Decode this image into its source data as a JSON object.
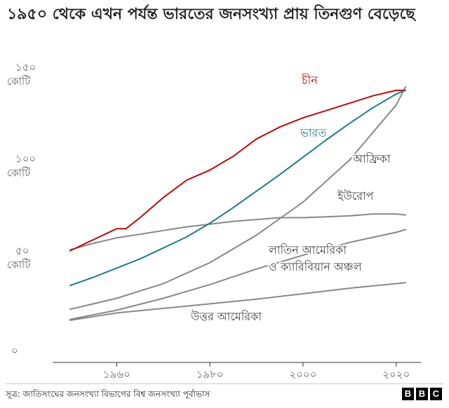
{
  "title": "১৯৫০ থেকে এখন পর্যন্ত ভারতের জনসংখ্যা প্রায় তিনগুণ বেড়েছে",
  "source": "সূত্র: জাতিসংঘের জনসংখ্যা বিভাগের বিশ্ব জনসংখ্যা পূর্বাভাস",
  "logo": [
    "B",
    "B",
    "C"
  ],
  "chart_data": {
    "type": "line",
    "title": "১৯৫০ থেকে এখন পর্যন্ত ভারতের জনসংখ্যা প্রায় তিনগুণ বেড়েছে",
    "xlim": [
      1950,
      2022
    ],
    "ylim": [
      0,
      150
    ],
    "x_ticks": [
      {
        "value": 1960,
        "label": "১৯৬০"
      },
      {
        "value": 1980,
        "label": "১৯৮০"
      },
      {
        "value": 2000,
        "label": "২০০০"
      },
      {
        "value": 2020,
        "label": "২০২০"
      }
    ],
    "y_ticks": [
      {
        "value": 0,
        "label": [
          "০"
        ]
      },
      {
        "value": 50,
        "label": [
          "৫০",
          "কোটি"
        ]
      },
      {
        "value": 100,
        "label": [
          "১০০",
          "কোটি"
        ]
      },
      {
        "value": 150,
        "label": [
          "১৫০",
          "কোটি"
        ]
      }
    ],
    "grid": false,
    "series": [
      {
        "name": "চীন",
        "label": [
          "চীন"
        ],
        "color": "#b80c09",
        "emphasis": true,
        "x": [
          1950,
          1955,
          1960,
          1962,
          1965,
          1970,
          1975,
          1980,
          1985,
          1990,
          1995,
          2000,
          2005,
          2010,
          2015,
          2020,
          2022
        ],
        "y": [
          54.5,
          60.5,
          66.5,
          66.5,
          72.5,
          83.5,
          93,
          98.5,
          106,
          115.5,
          122,
          127,
          131,
          135,
          139,
          142,
          142
        ]
      },
      {
        "name": "ভারত",
        "label": [
          "ভারত"
        ],
        "color": "#1f7a8c",
        "emphasis": true,
        "x": [
          1950,
          1955,
          1960,
          1965,
          1970,
          1975,
          1980,
          1985,
          1990,
          1995,
          2000,
          2005,
          2010,
          2015,
          2020,
          2022
        ],
        "y": [
          35.5,
          40,
          45,
          50,
          56,
          62,
          69.5,
          78,
          87,
          96,
          105.5,
          115,
          124,
          132.5,
          140,
          142
        ]
      },
      {
        "name": "আফ্রিকা",
        "label": [
          "আফ্রিকা"
        ],
        "color": "#888888",
        "x": [
          1950,
          1960,
          1970,
          1980,
          1990,
          2000,
          2010,
          2020,
          2022
        ],
        "y": [
          22.5,
          28.5,
          36.5,
          48,
          63,
          81,
          104,
          134,
          144
        ]
      },
      {
        "name": "ইউরোপ",
        "label": [
          "ইউরোপ"
        ],
        "color": "#888888",
        "x": [
          1950,
          1955,
          1960,
          1965,
          1970,
          1975,
          1980,
          1985,
          1990,
          1995,
          2000,
          2005,
          2010,
          2015,
          2020,
          2022
        ],
        "y": [
          55,
          58.5,
          61.5,
          63.5,
          65.5,
          67.5,
          69,
          70.5,
          71.5,
          72.5,
          72.5,
          73,
          73.5,
          74.5,
          74.5,
          74
        ]
      },
      {
        "name": "লাতিন আমেরিকা ও ক্যারিবিয়ান অঞ্চল",
        "label": [
          "লাতিন আমেরিকা",
          "ও ক্যারিবিয়ান অঞ্চল"
        ],
        "color": "#888888",
        "x": [
          1950,
          1960,
          1970,
          1980,
          1990,
          2000,
          2010,
          2020,
          2022
        ],
        "y": [
          17,
          22,
          28.5,
          36,
          44.5,
          52,
          59,
          64.5,
          66
        ]
      },
      {
        "name": "উত্তর আমেরিকা",
        "label": [
          "উত্তর আমেরিকা"
        ],
        "color": "#888888",
        "x": [
          1950,
          1960,
          1970,
          1980,
          1990,
          2000,
          2010,
          2020,
          2022
        ],
        "y": [
          16.5,
          20.5,
          23,
          25.5,
          28,
          31,
          34,
          36.5,
          37
        ]
      }
    ]
  }
}
